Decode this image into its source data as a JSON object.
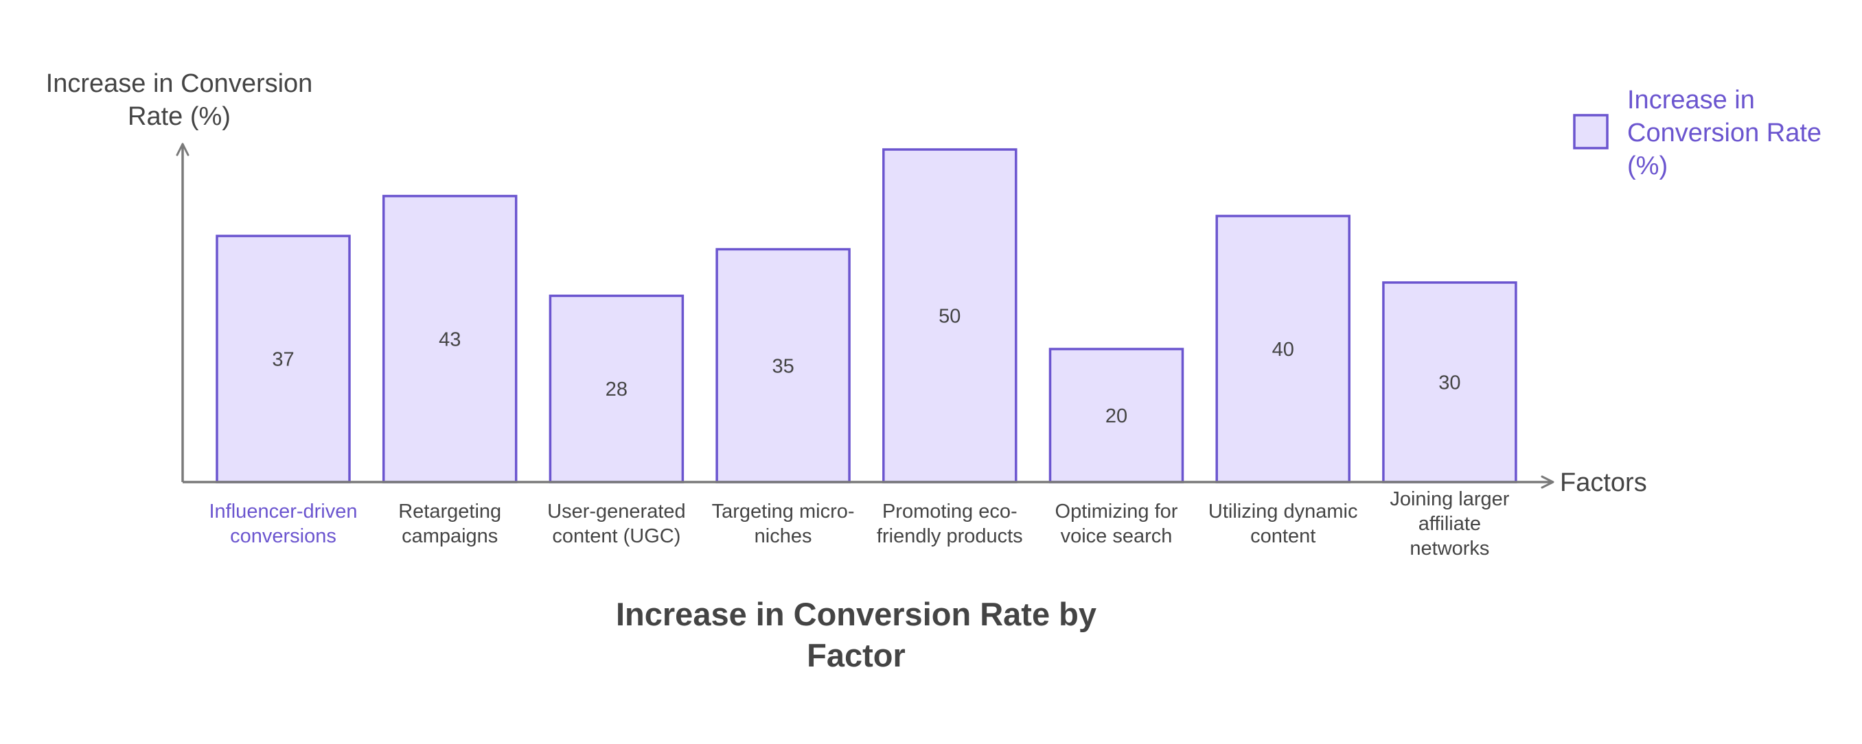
{
  "chart_data": {
    "type": "bar",
    "title": "Increase in Conversion Rate by Factor",
    "xlabel": "Factors",
    "ylabel": "Increase in Conversion Rate (%)",
    "categories": [
      "Influencer-driven conversions",
      "Retargeting campaigns",
      "User-generated content (UGC)",
      "Targeting micro-niches",
      "Promoting eco-friendly products",
      "Optimizing for voice search",
      "Utilizing dynamic content",
      "Joining larger affiliate networks"
    ],
    "series": [
      {
        "name": "Increase in Conversion Rate (%)",
        "values": [
          37,
          43,
          28,
          35,
          50,
          20,
          40,
          30
        ]
      }
    ],
    "ylim": [
      0,
      50
    ],
    "grid": false,
    "legend_position": "top-right",
    "highlighted_category": "Influencer-driven conversions"
  },
  "colors": {
    "bar_fill": "#e6e0fd",
    "bar_stroke": "#6b55cf",
    "axis": "#7a7a7a",
    "text": "#444444",
    "highlight_text": "#6b55cf",
    "legend_text": "#6b55cf"
  }
}
